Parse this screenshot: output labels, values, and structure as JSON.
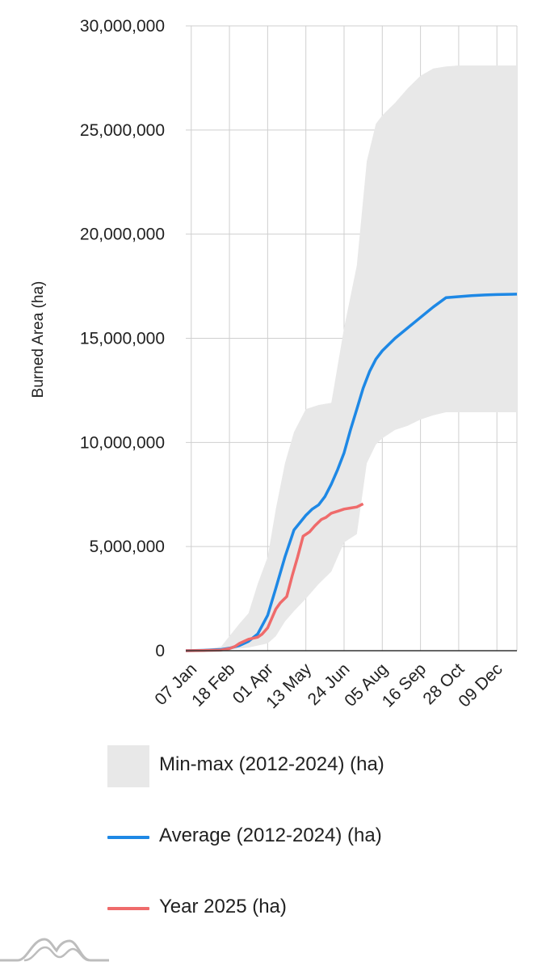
{
  "chart_data": {
    "type": "area",
    "title": "",
    "xlabel": "",
    "ylabel": "Burned Area (ha)",
    "ylim": [
      0,
      30000000
    ],
    "yticks": [
      0,
      5000000,
      10000000,
      15000000,
      20000000,
      25000000,
      30000000
    ],
    "ytick_labels": [
      "0",
      "5,000,000",
      "10,000,000",
      "15,000,000",
      "20,000,000",
      "25,000,000",
      "30,000,000"
    ],
    "x_unit": "day of year",
    "xlim": [
      1,
      365
    ],
    "x_ticks": [
      {
        "label": "07 Jan",
        "day": 7
      },
      {
        "label": "18 Feb",
        "day": 49
      },
      {
        "label": "01 Apr",
        "day": 91
      },
      {
        "label": "13 May",
        "day": 133
      },
      {
        "label": "24 Jun",
        "day": 175
      },
      {
        "label": "05 Aug",
        "day": 217
      },
      {
        "label": "16 Sep",
        "day": 259
      },
      {
        "label": "28 Oct",
        "day": 301
      },
      {
        "label": "09 Dec",
        "day": 343
      }
    ],
    "grid": true,
    "legend_position": "bottom",
    "series": [
      {
        "name": "Min-max (2012-2024) (ha)",
        "kind": "band",
        "color": "#e8e8e8",
        "x": [
          1,
          20,
          40,
          49,
          60,
          70,
          80,
          91,
          100,
          110,
          120,
          133,
          147,
          161,
          175,
          189,
          200,
          210,
          217,
          231,
          245,
          259,
          273,
          287,
          301,
          315,
          330,
          343,
          365
        ],
        "upper": [
          0,
          40000,
          200000,
          700000,
          1300000,
          1800000,
          3200000,
          4500000,
          6800000,
          9000000,
          10500000,
          11600000,
          11800000,
          11900000,
          15500000,
          18500000,
          23500000,
          25300000,
          25700000,
          26300000,
          27000000,
          27600000,
          27950000,
          28050000,
          28100000,
          28100000,
          28100000,
          28100000,
          28100000
        ],
        "lower": [
          0,
          10000,
          30000,
          50000,
          100000,
          150000,
          250000,
          350000,
          700000,
          1400000,
          1900000,
          2500000,
          3200000,
          3800000,
          5200000,
          5600000,
          9000000,
          9900000,
          10200000,
          10600000,
          10800000,
          11100000,
          11300000,
          11450000,
          11450000,
          11450000,
          11450000,
          11450000,
          11450000
        ]
      },
      {
        "name": "Average (2012-2024) (ha)",
        "kind": "line",
        "color": "#1e88e5",
        "x": [
          1,
          20,
          40,
          49,
          60,
          70,
          80,
          91,
          100,
          110,
          120,
          133,
          140,
          147,
          154,
          161,
          168,
          175,
          182,
          189,
          196,
          203,
          210,
          217,
          224,
          231,
          245,
          259,
          273,
          287,
          301,
          315,
          330,
          343,
          365
        ],
        "y": [
          0,
          20000,
          60000,
          120000,
          250000,
          450000,
          800000,
          1700000,
          3000000,
          4500000,
          5800000,
          6500000,
          6800000,
          7000000,
          7400000,
          8000000,
          8700000,
          9500000,
          10600000,
          11600000,
          12600000,
          13400000,
          14000000,
          14400000,
          14700000,
          15000000,
          15500000,
          16000000,
          16500000,
          16950000,
          17000000,
          17050000,
          17080000,
          17100000,
          17120000
        ]
      },
      {
        "name": "Year 2025 (ha)",
        "kind": "line",
        "color": "#ef6b6b",
        "x": [
          1,
          20,
          30,
          40,
          49,
          55,
          60,
          70,
          80,
          85,
          91,
          100,
          105,
          112,
          118,
          124,
          130,
          137,
          143,
          150,
          155,
          161,
          168,
          175,
          182,
          189,
          196
        ],
        "y": [
          0,
          10000,
          20000,
          30000,
          100000,
          200000,
          350000,
          550000,
          650000,
          800000,
          1100000,
          2000000,
          2300000,
          2600000,
          3600000,
          4500000,
          5500000,
          5700000,
          6000000,
          6300000,
          6400000,
          6600000,
          6700000,
          6800000,
          6850000,
          6900000,
          7050000
        ]
      }
    ]
  }
}
